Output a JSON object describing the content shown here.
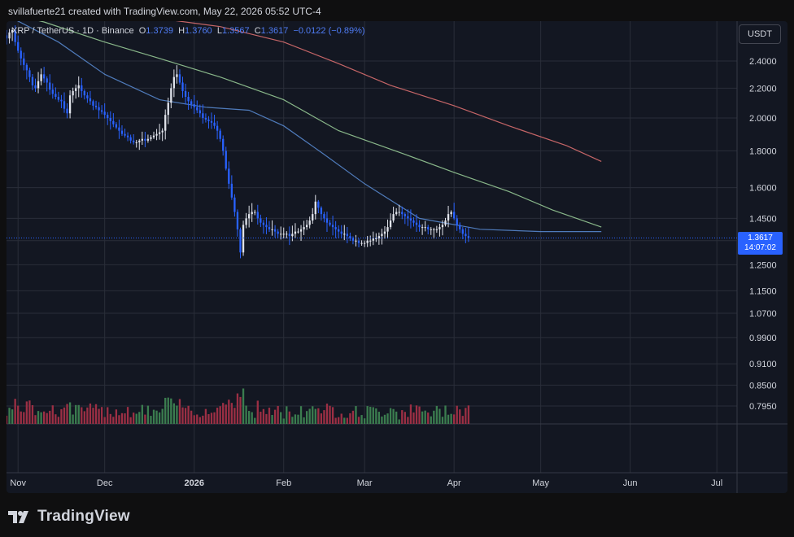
{
  "header": {
    "created_text": "svillafuerte21 created with TradingView.com, May 22, 2026 05:52 UTC-4"
  },
  "legend": {
    "symbol": "XRP / TetherUS · 1D · Binance",
    "o_label": "O",
    "o_value": "1.3739",
    "h_label": "H",
    "h_value": "1.3760",
    "l_label": "L",
    "l_value": "1.3567",
    "c_label": "C",
    "c_value": "1.3617",
    "change": "−0.0122 (−0.89%)"
  },
  "currency": "USDT",
  "last_price": {
    "value": "1.3617",
    "countdown": "14:07:02"
  },
  "brand": {
    "name": "TradingView"
  },
  "colors": {
    "up": "#e0e3eb",
    "down": "#2962ff",
    "ma_short": "#5b8dd6",
    "ma_mid": "#9ed29b",
    "ma_long": "#e57373",
    "vol_up": "#3b7d4f",
    "vol_down": "#9c2f44"
  },
  "chart_data": {
    "type": "candlestick",
    "symbol": "XRP/USDT",
    "interval": "1D",
    "y_ticks": [
      2.4,
      2.2,
      2.0,
      1.8,
      1.6,
      1.45,
      1.35,
      1.25,
      1.15,
      1.07,
      0.99,
      0.91,
      0.85,
      0.795
    ],
    "y_tick_labels": [
      "2.4000",
      "2.2000",
      "2.0000",
      "1.8000",
      "1.6000",
      "1.4500",
      "1.3500",
      "1.2500",
      "1.1500",
      "1.0700",
      "0.9900",
      "0.9100",
      "0.8500",
      "0.7950"
    ],
    "y_scale": "log",
    "x_ticks": [
      "Nov",
      "Dec",
      "2026",
      "Feb",
      "Mar",
      "Apr",
      "May",
      "Jun",
      "Jul"
    ],
    "x_tick_dates": [
      "2025-11-01",
      "2025-12-01",
      "2026-01-01",
      "2026-02-01",
      "2026-03-01",
      "2026-04-01",
      "2026-05-01",
      "2026-06-01",
      "2026-07-01"
    ],
    "x_range": [
      "2025-10-28",
      "2026-07-08"
    ],
    "close_series": {
      "start": "2025-10-28",
      "values": [
        2.58,
        2.63,
        2.65,
        2.55,
        2.48,
        2.42,
        2.37,
        2.33,
        2.28,
        2.22,
        2.2,
        2.25,
        2.3,
        2.27,
        2.24,
        2.19,
        2.16,
        2.14,
        2.12,
        2.11,
        2.06,
        2.03,
        2.15,
        2.18,
        2.2,
        2.22,
        2.18,
        2.15,
        2.13,
        2.11,
        2.08,
        2.07,
        2.05,
        2.04,
        2.02,
        2.0,
        1.98,
        1.96,
        1.94,
        1.92,
        1.9,
        1.89,
        1.88,
        1.86,
        1.85,
        1.85,
        1.86,
        1.87,
        1.86,
        1.87,
        1.88,
        1.89,
        1.9,
        1.91,
        1.92,
        2.02,
        2.1,
        2.2,
        2.28,
        2.3,
        2.24,
        2.18,
        2.14,
        2.11,
        2.09,
        2.07,
        2.05,
        2.03,
        2.0,
        1.99,
        1.98,
        1.97,
        1.95,
        1.92,
        1.87,
        1.8,
        1.7,
        1.62,
        1.55,
        1.48,
        1.4,
        1.3,
        1.42,
        1.45,
        1.47,
        1.48,
        1.48,
        1.45,
        1.43,
        1.42,
        1.41,
        1.4,
        1.4,
        1.39,
        1.38,
        1.38,
        1.38,
        1.38,
        1.37,
        1.38,
        1.39,
        1.39,
        1.4,
        1.41,
        1.42,
        1.44,
        1.47,
        1.53,
        1.5,
        1.47,
        1.45,
        1.43,
        1.42,
        1.41,
        1.4,
        1.39,
        1.38,
        1.38,
        1.37,
        1.36,
        1.35,
        1.35,
        1.34,
        1.34,
        1.34,
        1.35,
        1.35,
        1.36,
        1.36,
        1.37,
        1.38,
        1.39,
        1.41,
        1.44,
        1.47,
        1.48,
        1.48,
        1.47,
        1.46,
        1.45,
        1.44,
        1.43,
        1.42,
        1.41,
        1.41,
        1.41,
        1.4,
        1.4,
        1.4,
        1.4,
        1.41,
        1.42,
        1.44,
        1.47,
        1.48,
        1.45,
        1.42,
        1.4,
        1.38,
        1.37,
        1.3617
      ]
    },
    "moving_averages": [
      {
        "color": "#5b8dd6",
        "points": [
          [
            "2025-10-28",
            2.78
          ],
          [
            "2025-11-15",
            2.55
          ],
          [
            "2025-12-01",
            2.3
          ],
          [
            "2025-12-20",
            2.12
          ],
          [
            "2026-01-05",
            2.07
          ],
          [
            "2026-01-20",
            2.05
          ],
          [
            "2026-02-01",
            1.95
          ],
          [
            "2026-02-15",
            1.78
          ],
          [
            "2026-03-01",
            1.62
          ],
          [
            "2026-03-20",
            1.45
          ],
          [
            "2026-04-10",
            1.4
          ],
          [
            "2026-05-01",
            1.39
          ],
          [
            "2026-05-22",
            1.39
          ]
        ]
      },
      {
        "color": "#9ed29b",
        "points": [
          [
            "2025-10-28",
            2.8
          ],
          [
            "2025-11-10",
            2.72
          ],
          [
            "2025-12-01",
            2.55
          ],
          [
            "2025-12-20",
            2.42
          ],
          [
            "2026-01-10",
            2.28
          ],
          [
            "2026-02-01",
            2.12
          ],
          [
            "2026-02-20",
            1.92
          ],
          [
            "2026-03-15",
            1.78
          ],
          [
            "2026-04-01",
            1.68
          ],
          [
            "2026-04-20",
            1.58
          ],
          [
            "2026-05-05",
            1.49
          ],
          [
            "2026-05-22",
            1.41
          ]
        ]
      },
      {
        "color": "#e57373",
        "points": [
          [
            "2025-11-20",
            2.8
          ],
          [
            "2025-12-20",
            2.75
          ],
          [
            "2026-01-10",
            2.68
          ],
          [
            "2026-02-01",
            2.55
          ],
          [
            "2026-02-20",
            2.38
          ],
          [
            "2026-03-10",
            2.22
          ],
          [
            "2026-04-01",
            2.08
          ],
          [
            "2026-04-20",
            1.95
          ],
          [
            "2026-05-10",
            1.83
          ],
          [
            "2026-05-22",
            1.74
          ]
        ]
      }
    ]
  }
}
